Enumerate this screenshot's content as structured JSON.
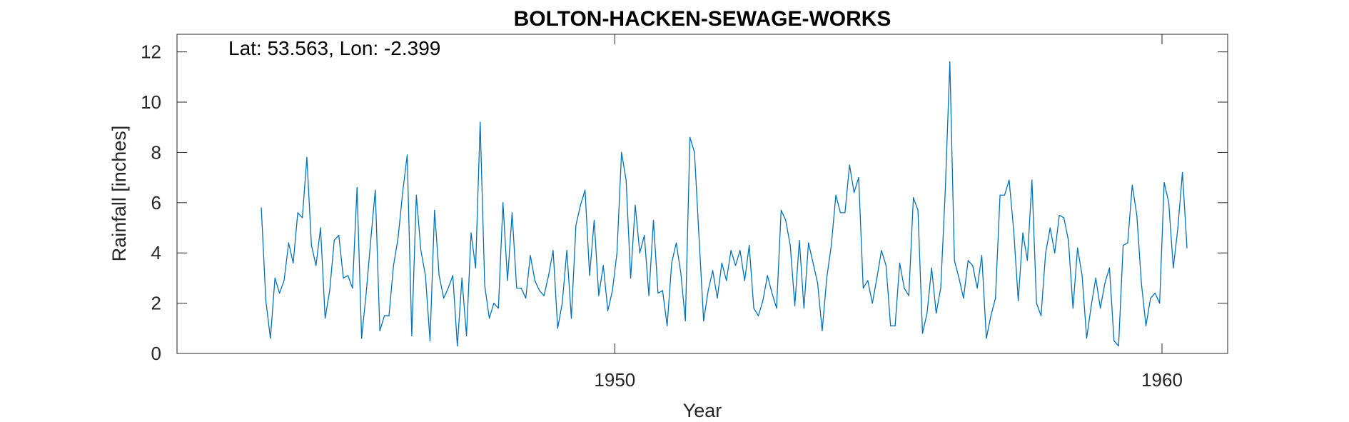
{
  "chart_data": {
    "type": "line",
    "title": "BOLTON-HACKEN-SEWAGE-WORKS",
    "annotation": "Lat: 53.563, Lon: -2.399",
    "xlabel": "Year",
    "ylabel": "Rainfall [inches]",
    "xlim": [
      1942.0,
      1961.2
    ],
    "ylim": [
      0,
      12.7
    ],
    "xticks": [
      1950,
      1960
    ],
    "yticks": [
      0,
      2,
      4,
      6,
      8,
      10,
      12
    ],
    "grid": false,
    "color": "#0072BD",
    "series": [
      {
        "x_start": 1943.54,
        "x_step": 0.0833333,
        "values": [
          5.8,
          2.1,
          0.6,
          3.0,
          2.4,
          2.9,
          4.4,
          3.6,
          5.6,
          5.4,
          7.8,
          4.3,
          3.5,
          5.0,
          1.4,
          2.5,
          4.5,
          4.7,
          3.0,
          3.1,
          2.6,
          6.6,
          0.6,
          2.4,
          4.5,
          6.5,
          0.9,
          1.5,
          1.5,
          3.5,
          4.6,
          6.4,
          7.9,
          0.7,
          6.3,
          4.1,
          3.1,
          0.5,
          5.7,
          3.1,
          2.2,
          2.6,
          3.1,
          0.3,
          3.0,
          0.7,
          4.8,
          3.4,
          9.2,
          2.7,
          1.4,
          2.0,
          1.8,
          6.0,
          2.9,
          5.6,
          2.6,
          2.6,
          2.2,
          3.9,
          2.9,
          2.5,
          2.3,
          3.1,
          4.1,
          1.0,
          2.0,
          4.1,
          1.4,
          5.1,
          5.9,
          6.5,
          3.1,
          5.3,
          2.3,
          3.5,
          1.7,
          2.5,
          4.0,
          8.0,
          6.9,
          3.0,
          5.9,
          4.0,
          4.7,
          2.3,
          5.3,
          2.4,
          2.5,
          1.1,
          3.6,
          4.4,
          3.2,
          1.3,
          8.6,
          8.0,
          4.6,
          1.3,
          2.5,
          3.3,
          2.2,
          3.6,
          2.9,
          4.1,
          3.5,
          4.1,
          2.9,
          4.3,
          1.8,
          1.5,
          2.1,
          3.1,
          2.4,
          1.8,
          5.7,
          5.3,
          4.3,
          1.9,
          4.5,
          1.8,
          4.4,
          3.6,
          2.8,
          0.9,
          3.0,
          4.3,
          6.3,
          5.6,
          5.6,
          7.5,
          6.4,
          7.0,
          2.6,
          2.9,
          2.0,
          3.0,
          4.1,
          3.5,
          1.1,
          1.1,
          3.6,
          2.6,
          2.3,
          6.2,
          5.7,
          0.8,
          1.6,
          3.4,
          1.6,
          2.6,
          6.5,
          11.6,
          3.7,
          3.0,
          2.2,
          3.7,
          3.5,
          2.6,
          3.9,
          0.6,
          1.5,
          2.2,
          6.3,
          6.3,
          6.9,
          4.9,
          2.1,
          4.8,
          3.7,
          6.9,
          2.0,
          1.5,
          4.0,
          5.0,
          4.0,
          5.5,
          5.4,
          4.5,
          1.8,
          4.2,
          3.1,
          0.6,
          1.9,
          3.0,
          1.8,
          2.8,
          3.4,
          0.5,
          0.3,
          4.3,
          4.4,
          6.7,
          5.5,
          2.8,
          1.1,
          2.2,
          2.4,
          2.0,
          6.8,
          6.0,
          3.4,
          5.0,
          7.2,
          4.2
        ]
      }
    ]
  }
}
